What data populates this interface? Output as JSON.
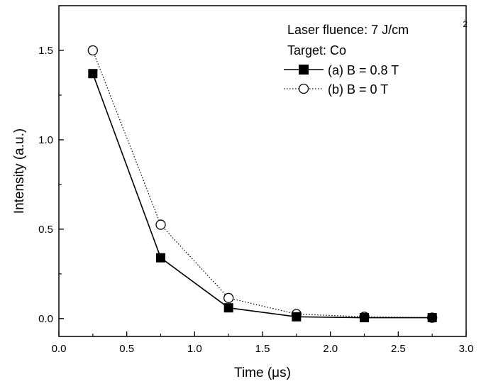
{
  "chart_data": {
    "type": "line",
    "xlabel": "Time (μs)",
    "ylabel": "Intensity (a.u.)",
    "xlim": [
      0.0,
      3.0
    ],
    "ylim": [
      -0.1,
      1.75
    ],
    "xticks": [
      "0.0",
      "0.5",
      "1.0",
      "1.5",
      "2.0",
      "2.5",
      "3.0"
    ],
    "yticks": [
      "0.0",
      "0.5",
      "1.0",
      "1.5"
    ],
    "x": [
      0.25,
      0.75,
      1.25,
      1.75,
      2.25,
      2.75
    ],
    "series": [
      {
        "name": "(a) B = 0.8 T",
        "values": [
          1.37,
          0.34,
          0.06,
          0.01,
          0.005,
          0.005
        ],
        "line_style": "solid",
        "marker": "filled-square",
        "color": "#000000"
      },
      {
        "name": "(b) B = 0 T",
        "values": [
          1.5,
          0.525,
          0.115,
          0.025,
          0.01,
          0.005
        ],
        "line_style": "dotted",
        "marker": "open-circle",
        "color": "#000000"
      }
    ],
    "annotations": [
      "Laser fluence: 7 J/cm",
      "2",
      "Target: Co"
    ],
    "grid": false,
    "legend_position": "top-right"
  }
}
